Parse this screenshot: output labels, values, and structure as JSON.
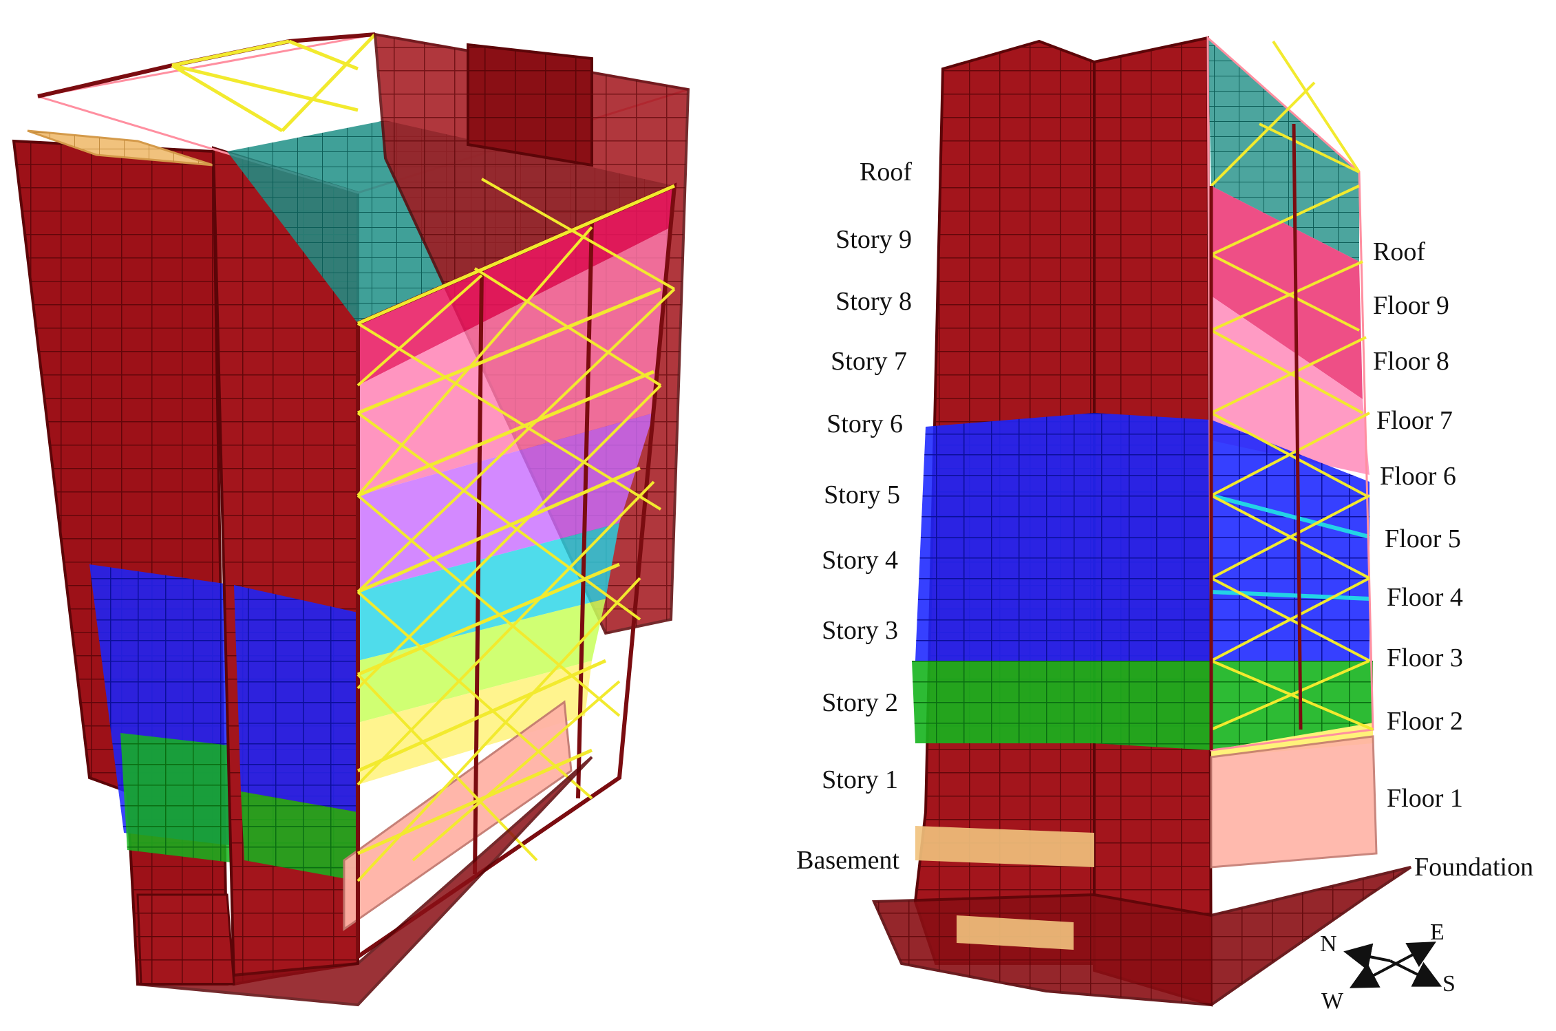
{
  "figure": {
    "colors": {
      "frame": "#7a0c10",
      "frame_fill": "#a3151c",
      "brace": "#f2ea2e",
      "slab": "#f1c27d",
      "teal": "#1f8f86",
      "magenta": "#e8145e",
      "pink": "#ff7ab0",
      "violet": "#c86bff",
      "blue": "#1a25ff",
      "cyan": "#23d3e6",
      "green": "#16b41e",
      "lime": "#c8ff5a",
      "salmon": "#ffb3a6"
    },
    "left_model": {
      "icons": [
        "building-3d-model-icon"
      ]
    },
    "right_model": {
      "story_labels": [
        "Roof",
        "Story 9",
        "Story 8",
        "Story 7",
        "Story 6",
        "Story 5",
        "Story 4",
        "Story 3",
        "Story 2",
        "Story 1",
        "Basement"
      ],
      "floor_labels": [
        "Roof",
        "Floor 9",
        "Floor 8",
        "Floor 7",
        "Floor 6",
        "Floor 5",
        "Floor 4",
        "Floor 3",
        "Floor 2",
        "Floor 1",
        "Foundation"
      ]
    },
    "compass": {
      "north": "N",
      "east": "E",
      "south": "S",
      "west": "W"
    }
  }
}
